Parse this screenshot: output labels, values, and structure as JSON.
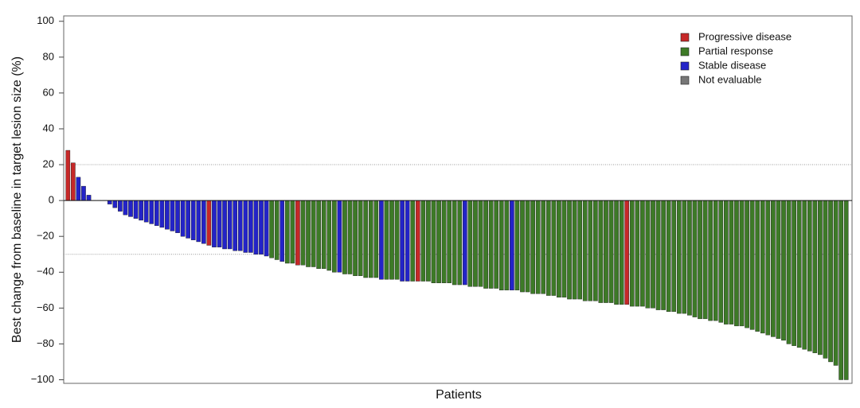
{
  "chart_data": {
    "type": "bar",
    "x_label": "Patients",
    "y_label": "Best change from baseline in target lesion size (%)",
    "ylim": [
      -102,
      103
    ],
    "yticks": [
      {
        "value": -100,
        "label": "−100"
      },
      {
        "value": -80,
        "label": "−80"
      },
      {
        "value": -60,
        "label": "−60"
      },
      {
        "value": -40,
        "label": "−40"
      },
      {
        "value": -20,
        "label": "−20"
      },
      0,
      20,
      40,
      60,
      80,
      100
    ],
    "ref_lines": [
      20,
      -30
    ],
    "legend": "upper right",
    "series": [
      {
        "name": "Progressive disease",
        "color": "#c62828",
        "values": [
          28,
          21,
          null,
          null,
          null,
          null,
          null,
          null,
          null,
          null,
          null,
          null,
          null,
          null,
          null,
          null,
          null,
          null,
          null,
          null,
          null,
          null,
          null,
          null,
          null,
          null,
          null,
          -25,
          null,
          null,
          null,
          null,
          null,
          null,
          null,
          null,
          null,
          null,
          null,
          null,
          null,
          null,
          null,
          null,
          -36,
          null,
          null,
          null,
          null,
          null,
          null,
          null,
          null,
          null,
          null,
          null,
          null,
          null,
          null,
          null,
          null,
          null,
          null,
          null,
          null,
          null,
          null,
          -45,
          null,
          null,
          null,
          null,
          null,
          null,
          null,
          null,
          null,
          null,
          null,
          null,
          null,
          null,
          null,
          null,
          null,
          null,
          null,
          null,
          null,
          null,
          null,
          null,
          null,
          null,
          null,
          null,
          null,
          null,
          null,
          null,
          null,
          null,
          null,
          null,
          null,
          null,
          null,
          -58,
          null,
          null,
          null,
          null,
          null,
          null,
          null,
          null,
          null,
          null,
          null,
          null,
          null,
          null,
          null,
          null,
          null,
          null,
          null,
          null,
          null,
          null,
          null,
          null,
          null,
          null,
          null,
          null,
          null,
          null,
          null,
          null,
          null,
          null,
          null,
          null,
          null,
          null,
          null,
          null,
          null,
          null
        ]
      },
      {
        "name": "Partial response",
        "color": "#3d7a27",
        "values": [
          null,
          null,
          null,
          null,
          null,
          null,
          null,
          null,
          null,
          null,
          null,
          null,
          null,
          null,
          null,
          null,
          null,
          null,
          null,
          null,
          null,
          null,
          null,
          null,
          null,
          null,
          null,
          null,
          null,
          null,
          null,
          null,
          null,
          null,
          null,
          null,
          null,
          null,
          null,
          -32,
          -33,
          null,
          -35,
          -35,
          null,
          -36,
          -37,
          -37,
          -38,
          -38,
          -39,
          -40,
          null,
          -41,
          -41,
          -42,
          -42,
          -43,
          -43,
          -43,
          null,
          -44,
          -44,
          -44,
          null,
          null,
          -45,
          null,
          -45,
          -45,
          -46,
          -46,
          -46,
          -46,
          -47,
          -47,
          null,
          -48,
          -48,
          -48,
          -49,
          -49,
          -49,
          -50,
          -50,
          null,
          -50,
          -51,
          -51,
          -52,
          -52,
          -52,
          -53,
          -53,
          -54,
          -54,
          -55,
          -55,
          -55,
          -56,
          -56,
          -56,
          -57,
          -57,
          -57,
          -58,
          -58,
          null,
          -59,
          -59,
          -59,
          -60,
          -60,
          -61,
          -61,
          -62,
          -62,
          -63,
          -63,
          -64,
          -65,
          -66,
          -66,
          -67,
          -67,
          -68,
          -69,
          -69,
          -70,
          -70,
          -71,
          -72,
          -73,
          -74,
          -75,
          -76,
          -77,
          -78,
          -80,
          -81,
          -82,
          -83,
          -84,
          -85,
          -86,
          -88,
          -90,
          -92,
          -100,
          -100
        ]
      },
      {
        "name": "Stable disease",
        "color": "#2323c8",
        "values": [
          null,
          null,
          13,
          8,
          3,
          null,
          null,
          null,
          -2,
          -4,
          -6,
          -8,
          -9,
          -10,
          -11,
          -12,
          -13,
          -14,
          -15,
          -16,
          -17,
          -18,
          -20,
          -21,
          -22,
          -23,
          -24,
          null,
          -26,
          -26,
          -27,
          -27,
          -28,
          -28,
          -29,
          -29,
          -30,
          -30,
          -31,
          null,
          null,
          -34,
          null,
          null,
          null,
          null,
          null,
          null,
          null,
          null,
          null,
          null,
          -40,
          null,
          null,
          null,
          null,
          null,
          null,
          null,
          -44,
          null,
          null,
          null,
          -45,
          -45,
          null,
          null,
          null,
          null,
          null,
          null,
          null,
          null,
          null,
          null,
          -47,
          null,
          null,
          null,
          null,
          null,
          null,
          null,
          null,
          -50,
          null,
          null,
          null,
          null,
          null,
          null,
          null,
          null,
          null,
          null,
          null,
          null,
          null,
          null,
          null,
          null,
          null,
          null,
          null,
          null,
          null,
          null,
          null,
          null,
          null,
          null,
          null,
          null,
          null,
          null,
          null,
          null,
          null,
          null,
          null,
          null,
          null,
          null,
          null,
          null,
          null,
          null,
          null,
          null,
          null,
          null,
          null,
          null,
          null,
          null,
          null,
          null,
          null,
          null,
          null,
          null,
          null,
          null,
          null,
          null,
          null,
          null,
          null,
          null
        ]
      },
      {
        "name": "Not evaluable",
        "color": "#777777",
        "values": [
          null,
          null,
          null,
          null,
          null,
          0,
          0,
          0,
          null,
          null,
          null,
          null,
          null,
          null,
          null,
          null,
          null,
          null,
          null,
          null,
          null,
          null,
          null,
          null,
          null,
          null,
          null,
          null,
          null,
          null,
          null,
          null,
          null,
          null,
          null,
          null,
          null,
          null,
          null,
          null,
          null,
          null,
          null,
          null,
          null,
          null,
          null,
          null,
          null,
          null,
          null,
          null,
          null,
          null,
          null,
          null,
          null,
          null,
          null,
          null,
          null,
          null,
          null,
          null,
          null,
          null,
          null,
          null,
          null,
          null,
          null,
          null,
          null,
          null,
          null,
          null,
          null,
          null,
          null,
          null,
          null,
          null,
          null,
          null,
          null,
          null,
          null,
          null,
          null,
          null,
          null,
          null,
          null,
          null,
          null,
          null,
          null,
          null,
          null,
          null,
          null,
          null,
          null,
          null,
          null,
          null,
          null,
          null,
          null,
          null,
          null,
          null,
          null,
          null,
          null,
          null,
          null,
          null,
          null,
          null,
          null,
          null,
          null,
          null,
          null,
          null,
          null,
          null,
          null,
          null,
          null,
          null,
          null,
          null,
          null,
          null,
          null,
          null,
          null,
          null,
          null,
          null,
          null,
          null,
          null,
          null,
          null,
          null,
          null,
          null
        ]
      }
    ]
  }
}
